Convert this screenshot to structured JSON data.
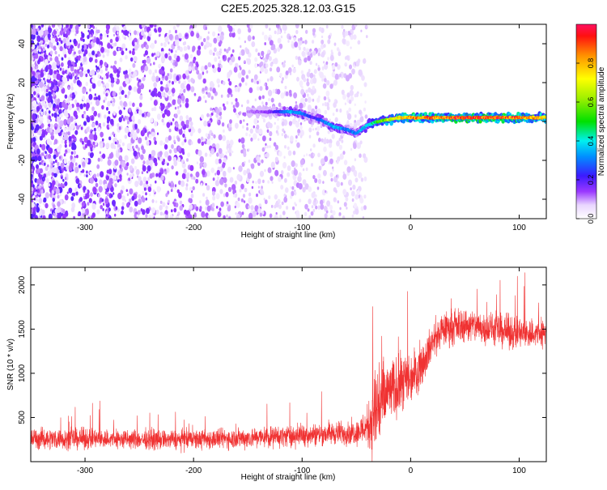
{
  "title": "C2E5.2025.328.12.03.G15",
  "chart_data": [
    {
      "type": "heatmap",
      "xlabel": "Height of straight line (km)",
      "ylabel": "Frequency (Hz)",
      "xlim": [
        -350,
        125
      ],
      "ylim": [
        -50,
        50
      ],
      "xticks": [
        -300,
        -200,
        -100,
        0,
        100
      ],
      "yticks": [
        -40,
        -20,
        0,
        20,
        40
      ],
      "colorbar": {
        "label": "Normalized spectral amplitude",
        "range": [
          0,
          1
        ],
        "ticks": [
          0.0,
          0.2,
          0.4,
          0.6,
          0.8
        ]
      },
      "noise_region_km": [
        -350,
        -40
      ],
      "ridge": {
        "x": [
          -150,
          -130,
          -110,
          -100,
          -90,
          -80,
          -70,
          -60,
          -50,
          -45,
          -40,
          -30,
          -20,
          -10,
          0,
          20,
          50,
          80,
          100,
          125
        ],
        "y": [
          5,
          5,
          5,
          4,
          2,
          0,
          -3,
          -4,
          -6,
          -4,
          -2,
          0,
          1,
          2,
          2,
          2,
          2,
          2,
          2,
          2
        ],
        "amplitude": [
          0.1,
          0.15,
          0.35,
          0.3,
          0.2,
          0.3,
          0.35,
          0.3,
          0.3,
          0.35,
          0.4,
          0.5,
          0.65,
          0.75,
          0.8,
          0.85,
          0.9,
          0.9,
          0.85,
          0.8
        ]
      }
    },
    {
      "type": "line",
      "xlabel": "Height of straight line (km)",
      "ylabel": "SNR (10 * v/v)",
      "xlim": [
        -350,
        125
      ],
      "ylim": [
        0,
        2200
      ],
      "xticks": [
        -300,
        -200,
        -100,
        0,
        100
      ],
      "yticks": [
        500,
        1000,
        1500,
        2000
      ],
      "color": "#f03232",
      "series": [
        {
          "name": "SNR",
          "x": [
            -350,
            -300,
            -250,
            -200,
            -150,
            -100,
            -75,
            -50,
            -40,
            -35,
            -30,
            -25,
            -20,
            -10,
            0,
            10,
            20,
            30,
            50,
            75,
            100,
            125
          ],
          "mean": [
            260,
            260,
            250,
            250,
            270,
            300,
            320,
            330,
            400,
            500,
            650,
            700,
            800,
            850,
            950,
            1100,
            1350,
            1500,
            1550,
            1500,
            1450,
            1450
          ],
          "spread": [
            170,
            170,
            160,
            160,
            170,
            180,
            190,
            200,
            320,
            800,
            950,
            700,
            500,
            500,
            450,
            350,
            300,
            280,
            280,
            270,
            270,
            260
          ]
        }
      ]
    }
  ]
}
